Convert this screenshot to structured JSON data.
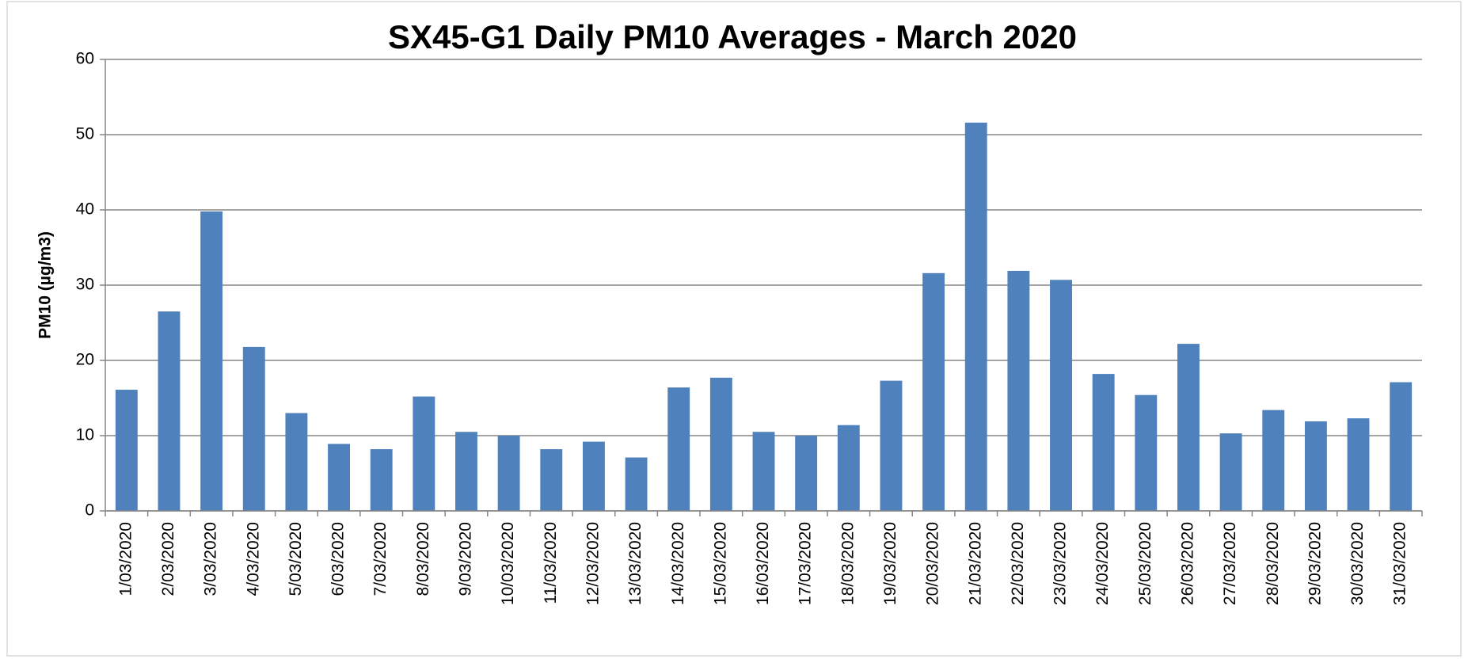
{
  "chart_data": {
    "type": "bar",
    "title": "SX45-G1 Daily PM10 Averages - March 2020",
    "y_label": "PM10 (µg/m3)",
    "categories": [
      "1/03/2020",
      "2/03/2020",
      "3/03/2020",
      "4/03/2020",
      "5/03/2020",
      "6/03/2020",
      "7/03/2020",
      "8/03/2020",
      "9/03/2020",
      "10/03/2020",
      "11/03/2020",
      "12/03/2020",
      "13/03/2020",
      "14/03/2020",
      "15/03/2020",
      "16/03/2020",
      "17/03/2020",
      "18/03/2020",
      "19/03/2020",
      "20/03/2020",
      "21/03/2020",
      "22/03/2020",
      "23/03/2020",
      "24/03/2020",
      "25/03/2020",
      "26/03/2020",
      "27/03/2020",
      "28/03/2020",
      "29/03/2020",
      "30/03/2020",
      "31/03/2020"
    ],
    "values": [
      16.1,
      26.5,
      39.8,
      21.8,
      13.0,
      8.9,
      8.2,
      15.2,
      10.5,
      10.0,
      8.2,
      9.2,
      7.1,
      16.4,
      17.7,
      10.5,
      10.0,
      11.4,
      17.3,
      31.6,
      51.6,
      31.9,
      30.7,
      18.2,
      15.4,
      22.2,
      10.3,
      13.4,
      11.9,
      12.3,
      17.1
    ],
    "color": "#4f81bd",
    "ylim": [
      0,
      60
    ],
    "yticks": [
      0,
      10,
      20,
      30,
      40,
      50,
      60
    ],
    "grid": true
  }
}
